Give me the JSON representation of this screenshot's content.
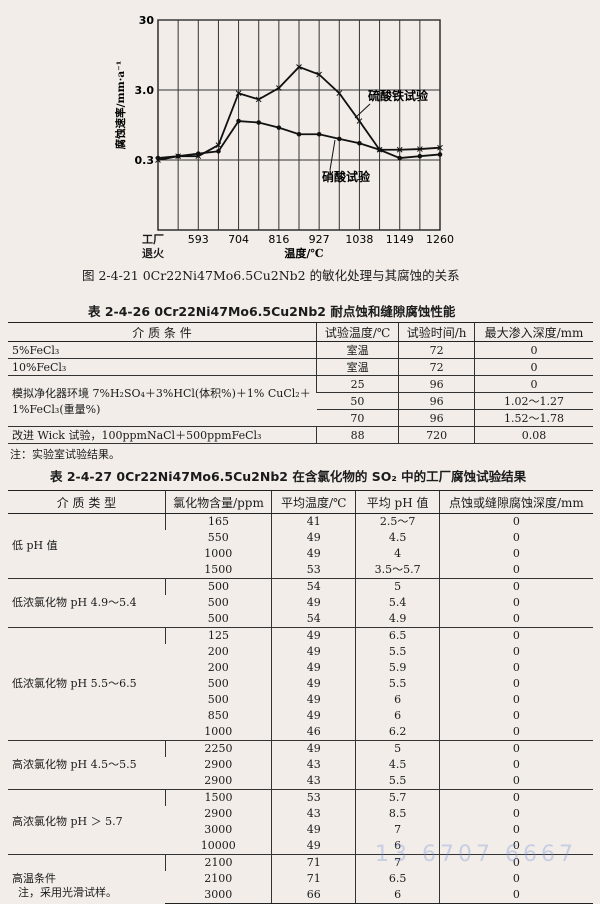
{
  "figure": {
    "caption": "图 2-4-21   0Cr22Ni47Mo6.5Cu2Nb2 的敏化处理与其腐蚀的关系",
    "chart_data": {
      "type": "line",
      "xlabel": "温度/℃",
      "ylabel": "腐蚀速率/mm·a⁻¹",
      "x_ticks": [
        "工厂退火",
        "",
        "593",
        "",
        "704",
        "",
        "816",
        "",
        "927",
        "",
        "1038",
        "",
        "1149",
        "",
        "1260"
      ],
      "y_scale": "log",
      "ylim": [
        0.03,
        30
      ],
      "y_ticks": [
        "30",
        "3.0",
        "0.3"
      ],
      "y_tick_values": [
        30,
        3.0,
        0.3
      ],
      "grid": true,
      "series": [
        {
          "name": "硫酸铁试验",
          "marker": "x",
          "values": [
            0.3,
            0.34,
            0.34,
            0.49,
            2.7,
            2.2,
            3.2,
            6.4,
            5.0,
            2.7,
            1.08,
            0.42,
            0.42,
            0.43,
            0.45
          ]
        },
        {
          "name": "硝酸试验",
          "marker": "dot",
          "values": [
            0.32,
            0.34,
            0.37,
            0.4,
            1.08,
            1.03,
            0.87,
            0.7,
            0.7,
            0.6,
            0.52,
            0.42,
            0.32,
            0.34,
            0.36
          ]
        }
      ]
    }
  },
  "table1": {
    "title": "表 2-4-26   0Cr22Ni47Mo6.5Cu2Nb2 耐点蚀和缝隙腐蚀性能",
    "headers": [
      "介 质 条 件",
      "试验温度/℃",
      "试验时间/h",
      "最大渗入深度/mm"
    ],
    "rows": [
      [
        "5%FeCl₃",
        "室温",
        "72",
        "0"
      ],
      [
        "10%FeCl₃",
        "室温",
        "72",
        "0"
      ],
      [
        "模拟净化器环境 7%H₂SO₄＋3%HCl(体积%)＋1% CuCl₂＋1%FeCl₃(重量%)",
        "25",
        "96",
        "0"
      ],
      [
        "",
        "50",
        "96",
        "1.02～1.27"
      ],
      [
        "",
        "70",
        "96",
        "1.52～1.78"
      ],
      [
        "改进 Wick 试验，100ppmNaCl＋500ppmFeCl₃",
        "88",
        "720",
        "0.08"
      ]
    ],
    "note": "注：实验室试验结果。"
  },
  "table2": {
    "title": "表 2-4-27   0Cr22Ni47Mo6.5Cu2Nb2 在含氯化物的 SO₂ 中的工厂腐蚀试验结果",
    "headers": [
      "介 质 类 型",
      "氯化物含量/ppm",
      "平均温度/℃",
      "平均 pH 值",
      "点蚀或缝隙腐蚀深度/mm"
    ],
    "groups": [
      {
        "type": "低 pH 值",
        "rows": [
          [
            "165",
            "41",
            "2.5～7",
            "0"
          ],
          [
            "550",
            "49",
            "4.5",
            "0"
          ],
          [
            "1000",
            "49",
            "4",
            "0"
          ],
          [
            "1500",
            "53",
            "3.5～5.7",
            "0"
          ]
        ]
      },
      {
        "type": "低浓氯化物 pH 4.9～5.4",
        "rows": [
          [
            "500",
            "54",
            "5",
            "0"
          ],
          [
            "500",
            "49",
            "5.4",
            "0"
          ],
          [
            "500",
            "54",
            "4.9",
            "0"
          ]
        ]
      },
      {
        "type": "低浓氯化物 pH 5.5～6.5",
        "rows": [
          [
            "125",
            "49",
            "6.5",
            "0"
          ],
          [
            "200",
            "49",
            "5.5",
            "0"
          ],
          [
            "200",
            "49",
            "5.9",
            "0"
          ],
          [
            "500",
            "49",
            "5.5",
            "0"
          ],
          [
            "500",
            "49",
            "6",
            "0"
          ],
          [
            "850",
            "49",
            "6",
            "0"
          ],
          [
            "1000",
            "46",
            "6.2",
            "0"
          ]
        ]
      },
      {
        "type": "高浓氯化物 pH 4.5～5.5",
        "rows": [
          [
            "2250",
            "49",
            "5",
            "0"
          ],
          [
            "2900",
            "43",
            "4.5",
            "0"
          ],
          [
            "2900",
            "43",
            "5.5",
            "0"
          ]
        ]
      },
      {
        "type": "高浓氯化物 pH ＞ 5.7",
        "rows": [
          [
            "1500",
            "53",
            "5.7",
            "0"
          ],
          [
            "2900",
            "43",
            "8.5",
            "0"
          ],
          [
            "3000",
            "49",
            "7",
            "0"
          ],
          [
            "10000",
            "49",
            "6",
            "0"
          ]
        ]
      },
      {
        "type": "高温条件",
        "rows": [
          [
            "2100",
            "71",
            "7",
            "0"
          ],
          [
            "2100",
            "71",
            "6.5",
            "0"
          ],
          [
            "3000",
            "66",
            "6",
            "0"
          ]
        ]
      }
    ],
    "note": "注，采用光滑试样。"
  },
  "watermark": "13 6707 6667"
}
